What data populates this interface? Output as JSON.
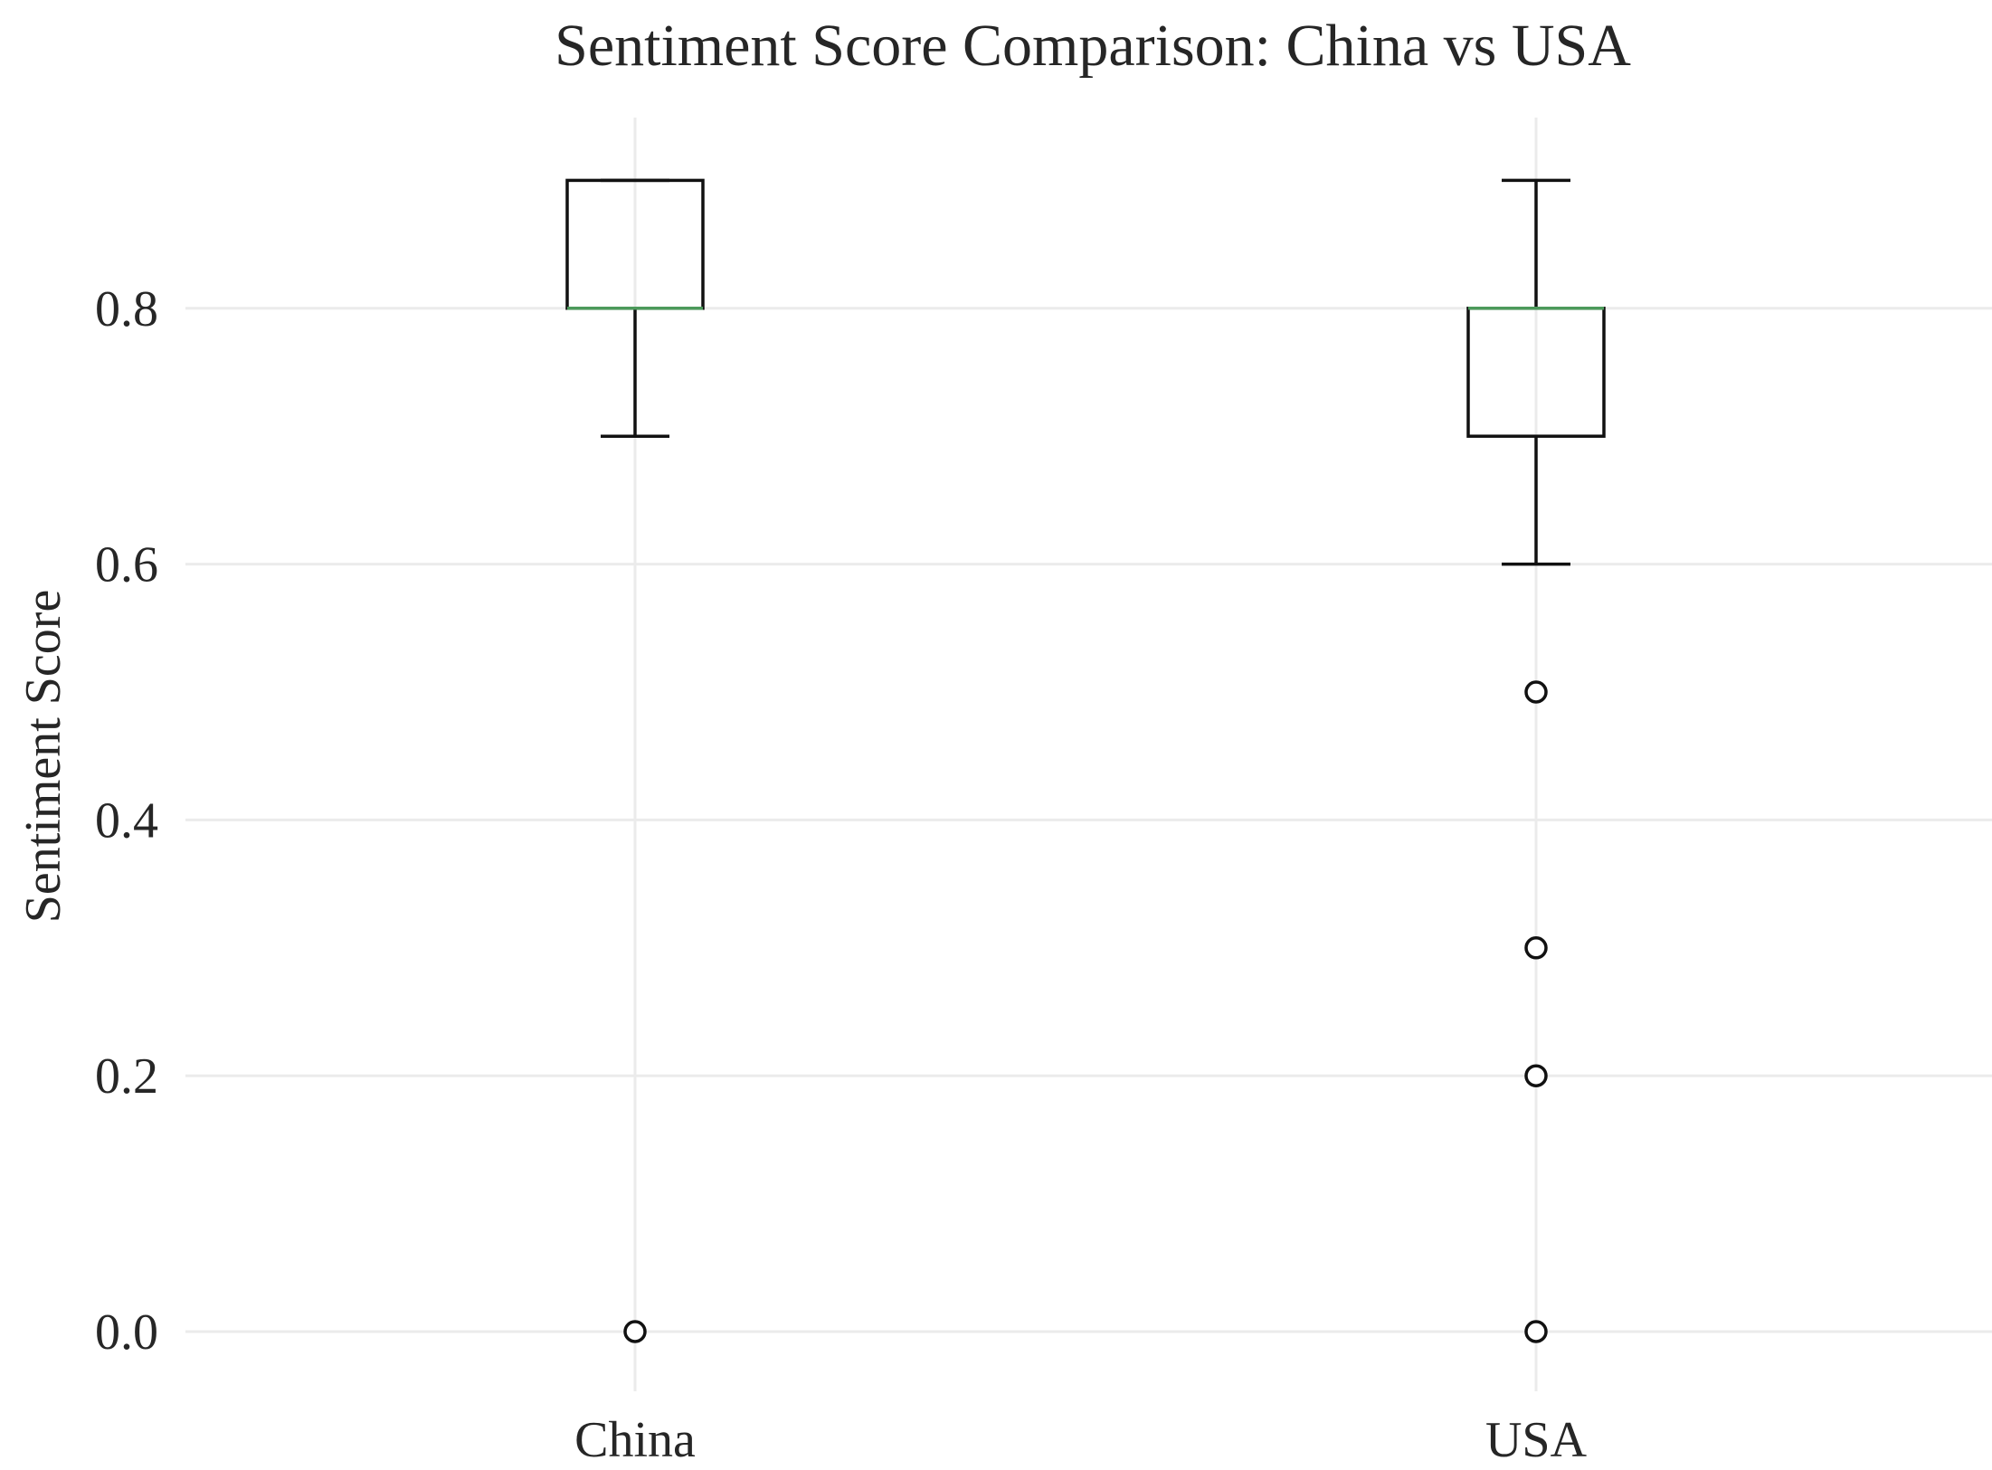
{
  "chart_data": {
    "type": "box",
    "title": "Sentiment Score Comparison: China vs USA",
    "xlabel": "",
    "ylabel": "Sentiment Score",
    "ylim": [
      -0.06,
      0.985
    ],
    "yticks": [
      0.0,
      0.2,
      0.4,
      0.6,
      0.8
    ],
    "ytick_labels": [
      "0.0",
      "0.2",
      "0.4",
      "0.6",
      "0.8"
    ],
    "grid": true,
    "categories": [
      "China",
      "USA"
    ],
    "boxes": [
      {
        "label": "China",
        "whisker_low": 0.7,
        "q1": 0.8,
        "median": 0.8,
        "q3": 0.9,
        "whisker_high": 0.9,
        "outliers": [
          0.0
        ]
      },
      {
        "label": "USA",
        "whisker_low": 0.6,
        "q1": 0.7,
        "median": 0.8,
        "q3": 0.8,
        "whisker_high": 0.9,
        "outliers": [
          0.5,
          0.3,
          0.2,
          0.0
        ]
      }
    ],
    "colors": {
      "box": "#111111",
      "median": "#4c9a5b",
      "grid": "#ebebeb",
      "text": "#262626"
    }
  }
}
